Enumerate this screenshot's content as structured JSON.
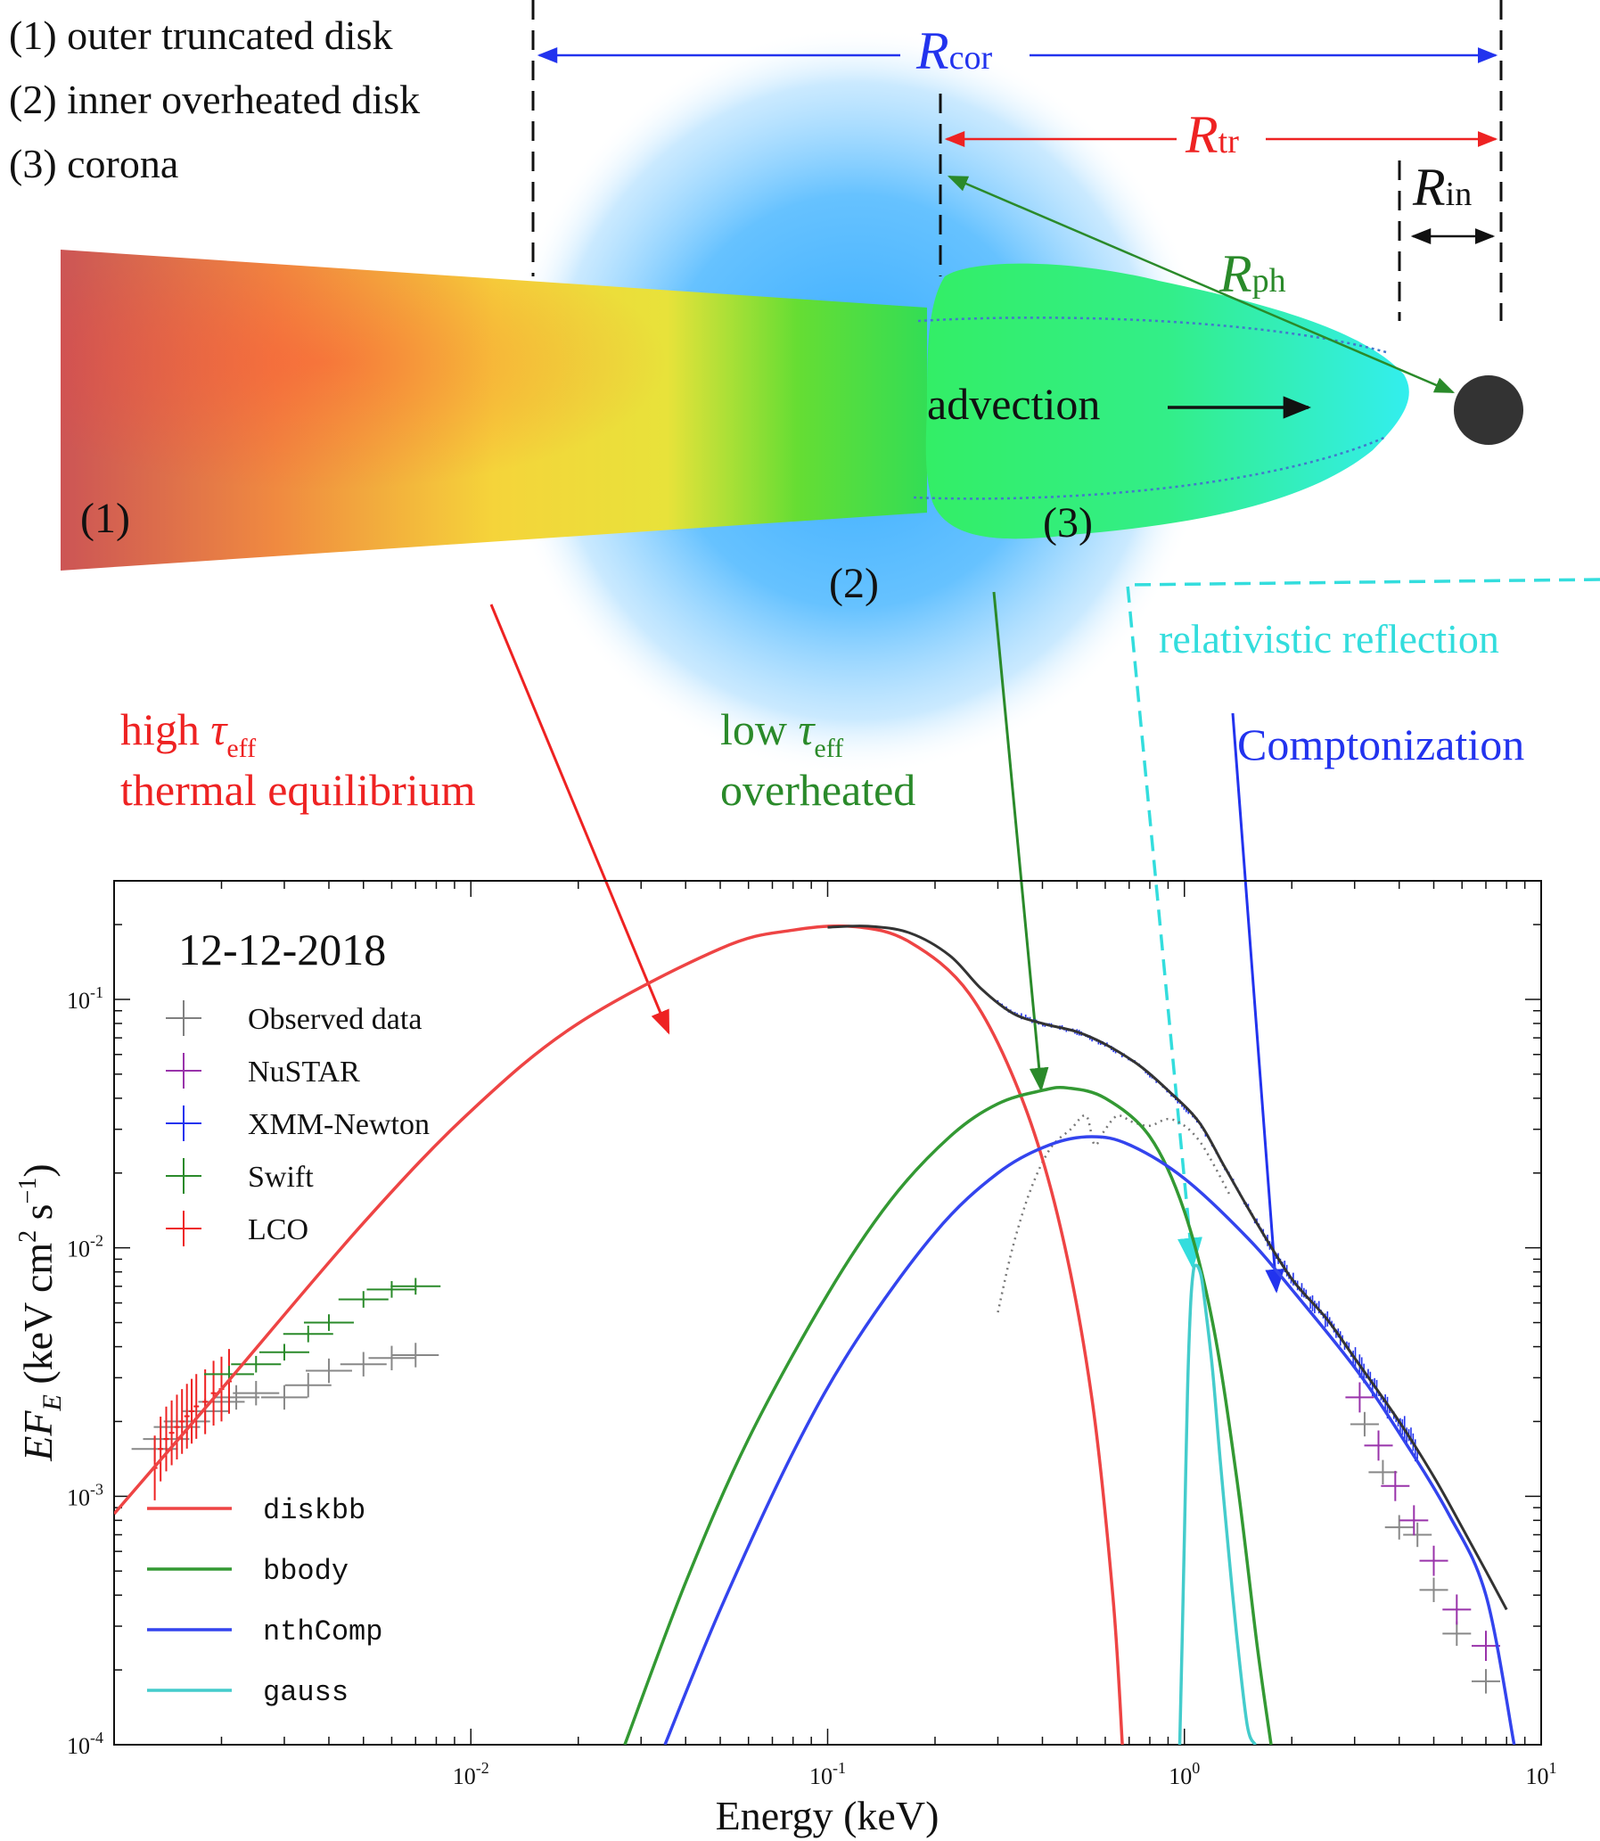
{
  "colors": {
    "red": "#ee2222",
    "green": "#2a8a2a",
    "blue": "#2233ee",
    "cyan": "#33dddd",
    "gray": "#808080",
    "purple": "#9933aa",
    "dark": "#333333"
  },
  "legend_top": {
    "item1": "(1) outer truncated disk",
    "item2": "(2) inner overheated disk",
    "item3": "(3) corona"
  },
  "radii": {
    "r_cor": {
      "sym": "R",
      "sub": "cor"
    },
    "r_tr": {
      "sym": "R",
      "sub": "tr"
    },
    "r_in": {
      "sym": "R",
      "sub": "in"
    },
    "r_ph": {
      "sym": "R",
      "sub": "ph"
    }
  },
  "labels": {
    "advection": "advection",
    "region1": "(1)",
    "region2": "(2)",
    "region3": "(3)",
    "reflection": "relativistic reflection",
    "comptonization": "Comptonization",
    "high_tau": {
      "pre": "high ",
      "sym": "τ",
      "sub": "eff"
    },
    "thermal_eq": "thermal equilibrium",
    "low_tau": {
      "pre": "low ",
      "sym": "τ",
      "sub": "eff"
    },
    "overheated": "overheated"
  },
  "chart_data": {
    "type": "line",
    "date_label": "12-12-2018",
    "xlabel": "Energy (keV)",
    "ylabel": {
      "main": "EF",
      "sub": "E",
      "units": " (keV cm",
      "exp1": "2",
      "mid": " s",
      "exp2": "−1",
      "end": ")"
    },
    "x_scale": "log",
    "y_scale": "log",
    "xlim": [
      0.001,
      10
    ],
    "ylim": [
      0.0001,
      0.3
    ],
    "x_ticks": [
      {
        "value": 0.01,
        "base": "10",
        "exp": "-2"
      },
      {
        "value": 0.1,
        "base": "10",
        "exp": "-1"
      },
      {
        "value": 1,
        "base": "10",
        "exp": "0"
      },
      {
        "value": 10,
        "base": "10",
        "exp": "1"
      }
    ],
    "y_ticks": [
      {
        "value": 0.0001,
        "base": "10",
        "exp": "-4"
      },
      {
        "value": 0.001,
        "base": "10",
        "exp": "-3"
      },
      {
        "value": 0.01,
        "base": "10",
        "exp": "-2"
      },
      {
        "value": 0.1,
        "base": "10",
        "exp": "-1"
      }
    ],
    "data_legend": [
      {
        "label": "Observed data",
        "color": "#808080"
      },
      {
        "label": "NuSTAR",
        "color": "#9933aa"
      },
      {
        "label": "XMM-Newton",
        "color": "#2233ee"
      },
      {
        "label": "Swift",
        "color": "#2a8a2a"
      },
      {
        "label": "LCO",
        "color": "#ee2222"
      }
    ],
    "model_legend": [
      {
        "label": "diskbb",
        "color": "#ee4444"
      },
      {
        "label": "bbody",
        "color": "#339933"
      },
      {
        "label": "nthComp",
        "color": "#3344ee"
      },
      {
        "label": "gauss",
        "color": "#44cccc"
      }
    ],
    "series": [
      {
        "name": "diskbb",
        "color": "#ee4444",
        "x": [
          0.001,
          0.002,
          0.005,
          0.01,
          0.02,
          0.05,
          0.08,
          0.12,
          0.17,
          0.25,
          0.35,
          0.45,
          0.55,
          0.63,
          0.67
        ],
        "y": [
          0.00085,
          0.0027,
          0.0126,
          0.0355,
          0.08,
          0.16,
          0.19,
          0.196,
          0.17,
          0.105,
          0.04,
          0.012,
          0.0025,
          0.0004,
          0.0001
        ]
      },
      {
        "name": "bbody",
        "color": "#339933",
        "x": [
          0.027,
          0.04,
          0.06,
          0.1,
          0.15,
          0.22,
          0.3,
          0.4,
          0.47,
          0.6,
          0.8,
          1.0,
          1.2,
          1.4,
          1.6,
          1.75
        ],
        "y": [
          0.0001,
          0.00045,
          0.0017,
          0.0065,
          0.0155,
          0.028,
          0.038,
          0.043,
          0.044,
          0.04,
          0.028,
          0.014,
          0.005,
          0.0012,
          0.00025,
          0.0001
        ]
      },
      {
        "name": "nthComp",
        "color": "#3344ee",
        "x": [
          0.035,
          0.05,
          0.08,
          0.12,
          0.2,
          0.3,
          0.42,
          0.55,
          0.7,
          1.0,
          1.5,
          2.0,
          3.0,
          4.0,
          5.5,
          7.0,
          8.4
        ],
        "y": [
          0.0001,
          0.00035,
          0.0015,
          0.0042,
          0.0115,
          0.02,
          0.026,
          0.028,
          0.026,
          0.019,
          0.011,
          0.0068,
          0.0033,
          0.0018,
          0.00085,
          0.0004,
          0.0001
        ]
      },
      {
        "name": "gauss",
        "color": "#44cccc",
        "x": [
          0.97,
          0.985,
          1.0,
          1.02,
          1.04,
          1.06,
          1.08,
          1.1,
          1.12,
          1.15,
          1.2,
          1.26,
          1.33,
          1.4,
          1.5,
          1.58
        ],
        "y": [
          0.0001,
          0.00025,
          0.0007,
          0.0026,
          0.0058,
          0.0081,
          0.0085,
          0.0082,
          0.0074,
          0.0055,
          0.0032,
          0.0014,
          0.0006,
          0.00028,
          0.00012,
          0.0001
        ]
      },
      {
        "name": "total",
        "color": "#333333",
        "x": [
          0.1,
          0.13,
          0.17,
          0.22,
          0.27,
          0.33,
          0.4,
          0.5,
          0.6,
          0.75,
          0.9,
          1.1,
          1.3,
          1.6,
          2.0,
          2.5,
          3.0,
          4.0,
          5.0,
          6.0,
          7.0,
          8.0
        ],
        "y": [
          0.195,
          0.197,
          0.185,
          0.15,
          0.11,
          0.088,
          0.08,
          0.074,
          0.066,
          0.054,
          0.043,
          0.032,
          0.021,
          0.0125,
          0.0075,
          0.0052,
          0.0036,
          0.002,
          0.0012,
          0.00075,
          0.0005,
          0.00035
        ]
      }
    ],
    "gray_dotted": {
      "x": [
        0.3,
        0.33,
        0.37,
        0.42,
        0.48,
        0.53,
        0.56,
        0.6,
        0.65,
        0.72,
        0.8,
        0.9,
        1.0,
        1.1,
        1.2,
        1.35
      ],
      "y": [
        0.0055,
        0.01,
        0.017,
        0.025,
        0.03,
        0.034,
        0.026,
        0.03,
        0.034,
        0.032,
        0.031,
        0.033,
        0.031,
        0.027,
        0.022,
        0.016
      ]
    },
    "observed_points": {
      "x": [
        0.0013,
        0.0014,
        0.0015,
        0.0016,
        0.0018,
        0.002,
        0.0022,
        0.0025,
        0.003,
        0.0035,
        0.004,
        0.005,
        0.006,
        0.007,
        3.2,
        3.6,
        4.0,
        4.5,
        5.0,
        5.8,
        7.0
      ],
      "y": [
        0.00155,
        0.0017,
        0.0019,
        0.002,
        0.0022,
        0.0024,
        0.0025,
        0.0026,
        0.0025,
        0.0028,
        0.0032,
        0.0034,
        0.0036,
        0.0037,
        0.00195,
        0.00125,
        0.00075,
        0.0007,
        0.00042,
        0.00028,
        0.00018
      ]
    },
    "lco_points": {
      "x": [
        0.0013,
        0.00135,
        0.0014,
        0.00145,
        0.0015,
        0.00155,
        0.0016,
        0.00165,
        0.0017,
        0.0018,
        0.0019,
        0.002,
        0.0021
      ],
      "y": [
        0.0013,
        0.00155,
        0.0017,
        0.0018,
        0.0019,
        0.002,
        0.0021,
        0.0022,
        0.0023,
        0.0024,
        0.0026,
        0.0027,
        0.0029
      ]
    },
    "swift_points": {
      "x": [
        0.0021,
        0.0025,
        0.003,
        0.0035,
        0.004,
        0.005,
        0.006,
        0.007
      ],
      "y": [
        0.0031,
        0.0034,
        0.0038,
        0.0045,
        0.005,
        0.0062,
        0.0068,
        0.007
      ]
    },
    "nustar_points": {
      "x": [
        3.1,
        3.5,
        3.9,
        4.4,
        5.0,
        5.8,
        7.0
      ],
      "y": [
        0.0025,
        0.0016,
        0.0011,
        0.0008,
        0.00055,
        0.00035,
        0.00025
      ]
    }
  }
}
